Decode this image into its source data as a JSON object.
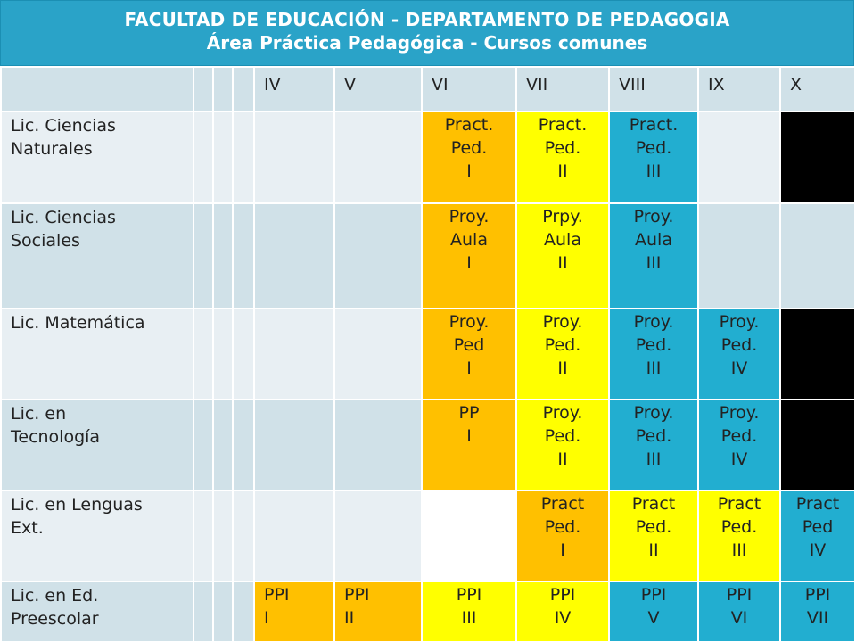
{
  "header": {
    "line1": "FACULTAD DE EDUCACIÓN  -  DEPARTAMENTO DE PEDAGOGIA",
    "line2": "Área Práctica Pedagógica - Cursos comunes"
  },
  "columns": [
    "IV",
    "V",
    "VI",
    "VII",
    "VIII",
    "IX",
    "X"
  ],
  "rows": [
    {
      "name": "Lic. Ciencias\nNaturales",
      "cells": [
        {
          "text": "",
          "color": "none"
        },
        {
          "text": "",
          "color": "none"
        },
        {
          "text": "Pract.\nPed.\nI",
          "color": "orange"
        },
        {
          "text": "Pract.\nPed.\nII",
          "color": "yellow"
        },
        {
          "text": "Pract.\nPed.\nIII",
          "color": "blue"
        },
        {
          "text": "",
          "color": "none"
        },
        {
          "text": "",
          "color": "black"
        }
      ]
    },
    {
      "name": "Lic. Ciencias\nSociales",
      "cells": [
        {
          "text": "",
          "color": "none"
        },
        {
          "text": "",
          "color": "none"
        },
        {
          "text": "Proy.\nAula\nI",
          "color": "orange"
        },
        {
          "text": "Prpy.\nAula\nII",
          "color": "yellow"
        },
        {
          "text": "Proy.\nAula\nIII",
          "color": "blue"
        },
        {
          "text": "",
          "color": "none"
        },
        {
          "text": "",
          "color": "none"
        }
      ]
    },
    {
      "name": "Lic. Matemática",
      "cells": [
        {
          "text": "",
          "color": "none"
        },
        {
          "text": "",
          "color": "none"
        },
        {
          "text": "Proy.\nPed\nI",
          "color": "orange"
        },
        {
          "text": "Proy.\nPed.\nII",
          "color": "yellow"
        },
        {
          "text": "Proy.\nPed.\nIII",
          "color": "blue"
        },
        {
          "text": "Proy.\nPed.\nIV",
          "color": "blue"
        },
        {
          "text": "",
          "color": "black"
        }
      ]
    },
    {
      "name": "Lic. en\nTecnología",
      "cells": [
        {
          "text": "",
          "color": "none"
        },
        {
          "text": "",
          "color": "none"
        },
        {
          "text": "PP\nI",
          "color": "orange"
        },
        {
          "text": "Proy.\nPed.\nII",
          "color": "yellow"
        },
        {
          "text": "Proy.\nPed.\nIII",
          "color": "blue"
        },
        {
          "text": "Proy.\nPed.\nIV",
          "color": "blue"
        },
        {
          "text": "",
          "color": "black"
        }
      ]
    },
    {
      "name": "Lic. en Lenguas\nExt.",
      "cells": [
        {
          "text": "",
          "color": "none"
        },
        {
          "text": "",
          "color": "none"
        },
        {
          "text": "",
          "color": "white"
        },
        {
          "text": "Pract\nPed.\nI",
          "color": "orange"
        },
        {
          "text": "Pract\nPed.\nII",
          "color": "yellow"
        },
        {
          "text": "Pract\nPed.\nIII",
          "color": "yellow"
        },
        {
          "text": "Pract\nPed\nIV",
          "color": "blue"
        }
      ]
    },
    {
      "name": "Lic. en Ed.\nPreescolar",
      "cells": [
        {
          "text": "PPI\nI",
          "color": "orange",
          "align": "left"
        },
        {
          "text": "PPI\nII",
          "color": "orange",
          "align": "left"
        },
        {
          "text": "PPI\nIII",
          "color": "yellow"
        },
        {
          "text": "PPI\nIV",
          "color": "yellow"
        },
        {
          "text": "PPI\nV",
          "color": "blue"
        },
        {
          "text": "PPI\nVI",
          "color": "blue"
        },
        {
          "text": "PPI\nVII",
          "color": "blue"
        }
      ]
    }
  ],
  "colors": {
    "header_bg": "#2aa3c8",
    "orange": "#ffc000",
    "yellow": "#ffff00",
    "blue": "#22aed0",
    "black": "#000000",
    "row_light": "#e8eff3",
    "row_dark": "#d0e1e8"
  }
}
